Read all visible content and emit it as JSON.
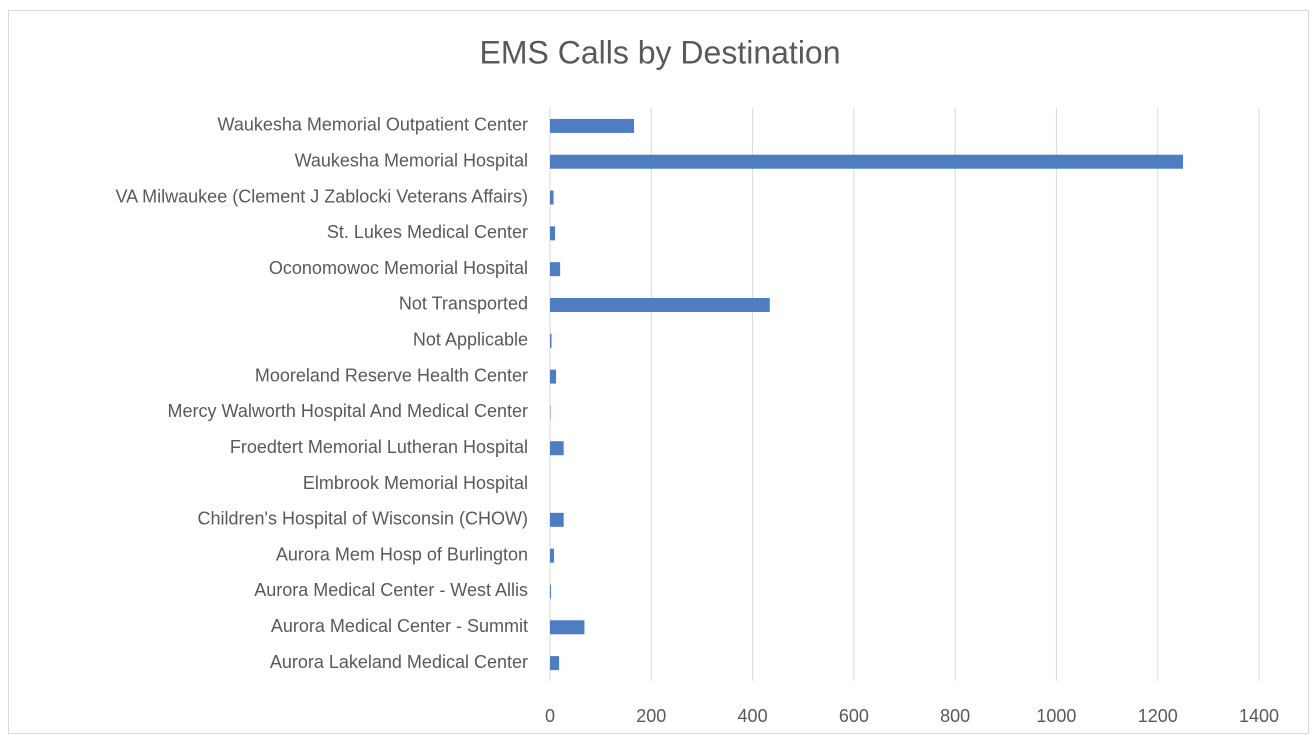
{
  "chart_data": {
    "type": "hbar",
    "title": "EMS Calls by Destination",
    "categories": [
      "Waukesha Memorial Outpatient Center",
      "Waukesha Memorial Hospital",
      "VA Milwaukee (Clement J Zablocki Veterans Affairs)",
      "St. Lukes Medical Center",
      "Oconomowoc Memorial Hospital",
      "Not Transported",
      "Not Applicable",
      "Mooreland Reserve Health Center",
      "Mercy Walworth Hospital And Medical Center",
      "Froedtert Memorial Lutheran Hospital",
      "Elmbrook Memorial Hospital",
      "Children's Hospital of Wisconsin (CHOW)",
      "Aurora Mem Hosp of Burlington",
      "Aurora Medical Center - West Allis",
      "Aurora Medical Center - Summit",
      "Aurora Lakeland Medical Center"
    ],
    "values": [
      166,
      1250,
      7,
      10,
      20,
      434,
      3,
      12,
      1,
      27,
      0,
      27,
      8,
      2,
      68,
      18
    ],
    "color": "#4e7dc2",
    "xlim": [
      0,
      1400
    ],
    "xticks": [
      0,
      200,
      400,
      600,
      800,
      1000,
      1200,
      1400
    ],
    "grid": true
  }
}
